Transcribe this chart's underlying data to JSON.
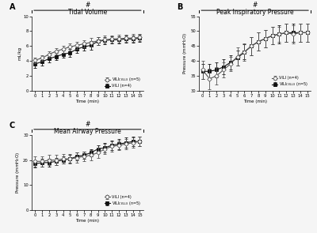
{
  "time": [
    0,
    1,
    2,
    3,
    4,
    5,
    6,
    7,
    8,
    9,
    10,
    11,
    12,
    13,
    14,
    15
  ],
  "A_title": "Tidal Volume",
  "A_ylabel": "mL/kg",
  "A_ylim": [
    0,
    10
  ],
  "A_yticks": [
    0,
    2,
    4,
    6,
    8,
    10
  ],
  "A_label1": "VILI$_{CELLS}$ (n=5)",
  "A_label2": "VILI (n=4)",
  "A_mean1": [
    4.1,
    4.4,
    4.9,
    5.3,
    5.6,
    5.9,
    6.1,
    6.3,
    6.5,
    6.7,
    6.85,
    6.95,
    7.0,
    7.05,
    7.1,
    7.15
  ],
  "A_err1": [
    0.35,
    0.38,
    0.42,
    0.45,
    0.48,
    0.48,
    0.48,
    0.5,
    0.55,
    0.55,
    0.55,
    0.5,
    0.5,
    0.5,
    0.5,
    0.5
  ],
  "A_mean2": [
    3.6,
    3.9,
    4.3,
    4.6,
    4.9,
    5.1,
    5.6,
    5.9,
    6.1,
    6.65,
    6.75,
    6.85,
    6.85,
    6.95,
    6.95,
    7.05
  ],
  "A_err2": [
    0.5,
    0.5,
    0.5,
    0.5,
    0.5,
    0.5,
    0.55,
    0.55,
    0.55,
    0.55,
    0.5,
    0.5,
    0.5,
    0.5,
    0.5,
    0.5
  ],
  "B_title": "Peak Inspiratory Pressure",
  "B_ylabel": "Pressure (mmH$_2$O)",
  "B_ylim": [
    30,
    55
  ],
  "B_yticks": [
    30,
    35,
    40,
    45,
    50,
    55
  ],
  "B_label1": "VILI (n=4)",
  "B_label2": "VILI$_{CELLS}$ (n=5)",
  "B_mean1": [
    37.0,
    34.0,
    35.0,
    37.0,
    39.0,
    41.5,
    43.0,
    45.0,
    46.5,
    47.5,
    48.5,
    49.0,
    49.5,
    49.0,
    49.5,
    49.5
  ],
  "B_err1": [
    3.0,
    3.5,
    3.0,
    2.5,
    2.5,
    3.0,
    3.0,
    3.0,
    3.0,
    3.0,
    3.0,
    2.5,
    3.0,
    3.0,
    3.0,
    3.0
  ],
  "B_mean2": [
    36.5,
    36.5,
    37.0,
    38.0,
    39.5,
    41.0,
    43.0,
    45.0,
    46.5,
    47.5,
    48.5,
    49.0,
    49.5,
    49.5,
    49.5,
    49.5
  ],
  "B_err2": [
    2.5,
    2.5,
    2.5,
    2.5,
    2.5,
    2.5,
    2.5,
    3.0,
    3.0,
    3.0,
    3.0,
    3.0,
    3.0,
    3.0,
    3.0,
    3.0
  ],
  "C_title": "Mean Airway Pressure",
  "C_ylabel": "Pressure (mmH$_2$O)",
  "C_ylim": [
    0,
    30
  ],
  "C_yticks": [
    0,
    10,
    20,
    30
  ],
  "C_label1": "VILI (n=4)",
  "C_label2": "VILI$_{CELLS}$ (n=5)",
  "C_mean1": [
    19.5,
    19.5,
    20.0,
    20.0,
    20.5,
    20.5,
    21.0,
    21.5,
    22.0,
    23.0,
    24.5,
    25.5,
    26.0,
    26.5,
    27.0,
    27.5
  ],
  "C_err1": [
    2.0,
    2.0,
    2.0,
    2.0,
    2.0,
    2.0,
    2.0,
    2.0,
    2.0,
    2.0,
    2.0,
    2.0,
    2.0,
    2.0,
    2.0,
    2.0
  ],
  "C_mean2": [
    18.5,
    19.0,
    19.0,
    19.5,
    20.0,
    20.5,
    21.5,
    22.0,
    23.0,
    24.5,
    25.0,
    26.0,
    26.5,
    27.0,
    27.5,
    27.5
  ],
  "C_err2": [
    1.5,
    1.5,
    1.5,
    1.5,
    1.5,
    1.5,
    1.5,
    1.5,
    1.5,
    1.5,
    2.0,
    2.0,
    2.0,
    2.0,
    2.0,
    2.0
  ],
  "color1": "#555555",
  "color2": "#111111",
  "marker1": "D",
  "marker2": "s",
  "markersize": 2.8,
  "linewidth": 0.8,
  "capsize": 1.5,
  "elinewidth": 0.6,
  "xlabel": "Time (min)",
  "sig_label": "#",
  "background": "#f5f5f5"
}
